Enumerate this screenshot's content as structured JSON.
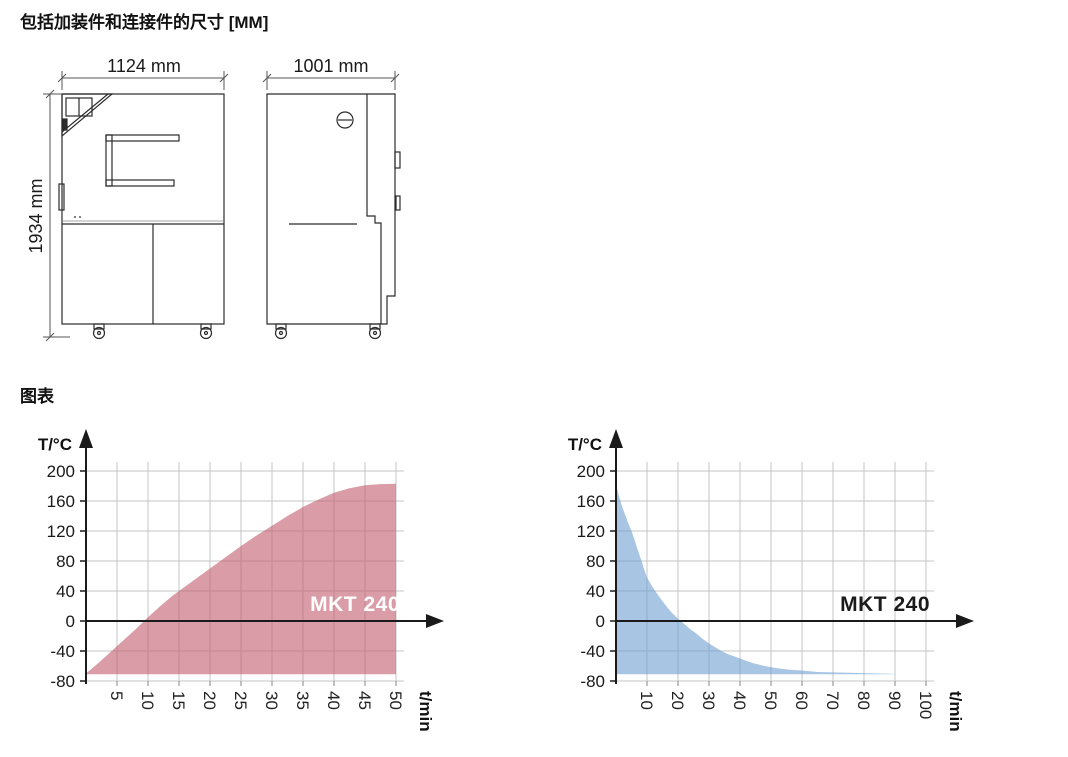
{
  "page": {
    "dimensions_heading": "包括加装件和连接件的尺寸 [MM]",
    "charts_heading": "图表"
  },
  "drawings": {
    "front": {
      "width": "1124 mm",
      "height": "1934 mm"
    },
    "side": {
      "width": "1001 mm"
    }
  },
  "chart_data": [
    {
      "type": "area",
      "name": "heating-ramp",
      "series_label": "MKT 240",
      "ylabel": "T/°C",
      "xlabel": "t/min",
      "xlim": [
        0,
        50
      ],
      "ylim": [
        -80,
        220
      ],
      "x_ticks": [
        5,
        10,
        15,
        20,
        25,
        30,
        35,
        40,
        45,
        50
      ],
      "y_ticks": [
        -80,
        -40,
        0,
        40,
        80,
        120,
        160,
        200
      ],
      "grid": true,
      "legend_position": "none",
      "fill_color": "rgba(197,99,117,0.63)",
      "label_color": "#ffffff",
      "baseline": -71,
      "points": [
        [
          0,
          -70
        ],
        [
          2,
          -56
        ],
        [
          4,
          -41
        ],
        [
          6,
          -26
        ],
        [
          8,
          -11
        ],
        [
          10,
          5
        ],
        [
          12,
          20
        ],
        [
          14,
          34
        ],
        [
          16,
          46
        ],
        [
          18,
          58
        ],
        [
          20,
          70
        ],
        [
          22.5,
          85
        ],
        [
          25,
          100
        ],
        [
          27.5,
          114
        ],
        [
          30,
          127
        ],
        [
          32.5,
          140
        ],
        [
          35,
          152
        ],
        [
          37.5,
          162
        ],
        [
          40,
          171
        ],
        [
          42.5,
          177
        ],
        [
          45,
          181
        ],
        [
          47.5,
          182.5
        ],
        [
          50,
          183
        ]
      ]
    },
    {
      "type": "area",
      "name": "cooling-ramp",
      "series_label": "MKT 240",
      "ylabel": "T/°C",
      "xlabel": "t/min",
      "xlim": [
        0,
        100
      ],
      "ylim": [
        -80,
        220
      ],
      "x_ticks": [
        10,
        20,
        30,
        40,
        50,
        60,
        70,
        80,
        90,
        100
      ],
      "y_ticks": [
        -80,
        -40,
        0,
        40,
        80,
        120,
        160,
        200
      ],
      "grid": true,
      "legend_position": "none",
      "fill_color": "rgba(112,160,210,0.61)",
      "label_color": "#1a1a1a",
      "baseline": -71,
      "points": [
        [
          0,
          182
        ],
        [
          1,
          166
        ],
        [
          2,
          152
        ],
        [
          3,
          141
        ],
        [
          4,
          130
        ],
        [
          5,
          120
        ],
        [
          6,
          108
        ],
        [
          7,
          95
        ],
        [
          8,
          83
        ],
        [
          9,
          70
        ],
        [
          10,
          58
        ],
        [
          12,
          44
        ],
        [
          14,
          32
        ],
        [
          16,
          21
        ],
        [
          18,
          11
        ],
        [
          20,
          3
        ],
        [
          22,
          -4
        ],
        [
          24,
          -11
        ],
        [
          26,
          -17
        ],
        [
          28,
          -24
        ],
        [
          30,
          -30
        ],
        [
          32,
          -35
        ],
        [
          34,
          -40
        ],
        [
          36,
          -44
        ],
        [
          38,
          -47
        ],
        [
          40,
          -50
        ],
        [
          44,
          -56
        ],
        [
          48,
          -60
        ],
        [
          52,
          -63
        ],
        [
          56,
          -65
        ],
        [
          60,
          -66
        ],
        [
          65,
          -68
        ],
        [
          70,
          -68.5
        ],
        [
          75,
          -69
        ],
        [
          80,
          -69.5
        ],
        [
          85,
          -70
        ],
        [
          90,
          -70.5
        ]
      ]
    }
  ]
}
